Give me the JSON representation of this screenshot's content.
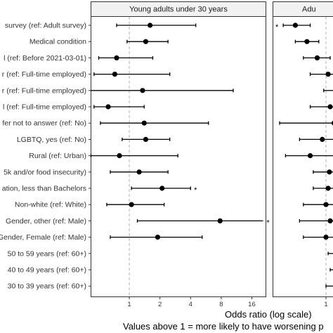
{
  "panels": [
    {
      "id": "left",
      "title": "Young adults under 30 years"
    },
    {
      "id": "right",
      "title": "Adu"
    }
  ],
  "x_title": "Odds ratio (log scale)",
  "caption": "Values above 1 = more likely to have worsening p",
  "chart_data": {
    "type": "scatter",
    "xscale": "log2",
    "xlim": [
      0.42,
      22
    ],
    "x_ticks": [
      1,
      2,
      4,
      8,
      16
    ],
    "x_tick_labels": [
      "1",
      "2",
      "4",
      "8",
      "16"
    ],
    "reference_line": 1,
    "significance_marker": "*",
    "categories": [
      "survey (ref: Adult survey)",
      "Medical condition",
      "l (ref: Before 2021-03-01)",
      "r (ref: Full-time employed)",
      "r (ref: Full-time employed)",
      "l (ref: Full-time employed)",
      "fer not to answer (ref: No)",
      "LGBTQ, yes (ref: No)",
      "Rural (ref: Urban)",
      "5k and/or food insecurity)",
      "ation, less than Bachelors",
      "Non-white (ref: White)",
      "Gender, other (ref: Male)",
      "Gender, Female (ref: Male)",
      "50 to 59 years (ref: 60+)",
      "40 to 49 years (ref: 60+)",
      "30 to 39 years (ref: 60+)"
    ],
    "series": [
      {
        "panel": "left",
        "estimates": [
          {
            "or": 1.6,
            "lo": 0.75,
            "hi": 4.5,
            "sig": false
          },
          {
            "or": 1.45,
            "lo": 0.95,
            "hi": 2.4,
            "sig": false
          },
          {
            "or": 0.75,
            "lo": 0.5,
            "hi": 1.7,
            "sig": false
          },
          {
            "or": 0.72,
            "lo": 0.45,
            "hi": 2.5,
            "sig": false
          },
          {
            "or": 1.35,
            "lo": 0.4,
            "hi": 10.5,
            "sig": false
          },
          {
            "or": 0.62,
            "lo": 0.45,
            "hi": 1.4,
            "sig": false
          },
          {
            "or": 1.4,
            "lo": 0.52,
            "hi": 6.0,
            "sig": false
          },
          {
            "or": 1.45,
            "lo": 0.85,
            "hi": 2.5,
            "sig": false
          },
          {
            "or": 0.8,
            "lo": 0.42,
            "hi": 3.0,
            "sig": false
          },
          {
            "or": 1.25,
            "lo": 0.65,
            "hi": 2.4,
            "sig": false
          },
          {
            "or": 2.1,
            "lo": 1.05,
            "hi": 4.0,
            "sig": true
          },
          {
            "or": 1.05,
            "lo": 0.6,
            "hi": 2.2,
            "sig": false
          },
          {
            "or": 7.8,
            "lo": 1.2,
            "hi": 48,
            "sig": true
          },
          {
            "or": 1.9,
            "lo": 0.65,
            "hi": 5.2,
            "sig": false
          },
          {
            "or": null,
            "lo": null,
            "hi": null,
            "sig": false
          },
          {
            "or": null,
            "lo": null,
            "hi": null,
            "sig": false
          },
          {
            "or": null,
            "lo": null,
            "hi": null,
            "sig": false
          }
        ]
      },
      {
        "panel": "right",
        "estimates": [
          {
            "or": 0.5,
            "lo": 0.38,
            "hi": 0.7,
            "sig": true
          },
          {
            "or": 0.65,
            "lo": 0.5,
            "hi": 0.85,
            "sig": false
          },
          {
            "or": 0.82,
            "lo": 0.6,
            "hi": 1.1,
            "sig": false
          },
          {
            "or": 1.05,
            "lo": 0.7,
            "hi": 1.6,
            "sig": false
          },
          {
            "or": 1.3,
            "lo": 0.95,
            "hi": 1.8,
            "sig": false
          },
          {
            "or": 1.1,
            "lo": 0.7,
            "hi": 1.7,
            "sig": false
          },
          {
            "or": 1.2,
            "lo": 0.35,
            "hi": 2.5,
            "sig": false
          },
          {
            "or": 0.92,
            "lo": 0.55,
            "hi": 1.5,
            "sig": false
          },
          {
            "or": 0.7,
            "lo": 0.4,
            "hi": 1.2,
            "sig": false
          },
          {
            "or": 1.08,
            "lo": 0.75,
            "hi": 1.6,
            "sig": false
          },
          {
            "or": 1.05,
            "lo": 0.75,
            "hi": 1.5,
            "sig": false
          },
          {
            "or": 1.0,
            "lo": 0.6,
            "hi": 1.6,
            "sig": false
          },
          {
            "or": 1.1,
            "lo": 0.55,
            "hi": 1.9,
            "sig": false
          },
          {
            "or": 1.0,
            "lo": 0.6,
            "hi": 1.5,
            "sig": false
          },
          {
            "or": 1.5,
            "lo": 1.05,
            "hi": 2.0,
            "sig": false
          },
          {
            "or": 1.6,
            "lo": 1.1,
            "hi": 2.2,
            "sig": false
          },
          {
            "or": 1.5,
            "lo": 1.0,
            "hi": 2.1,
            "sig": false
          }
        ]
      }
    ]
  }
}
